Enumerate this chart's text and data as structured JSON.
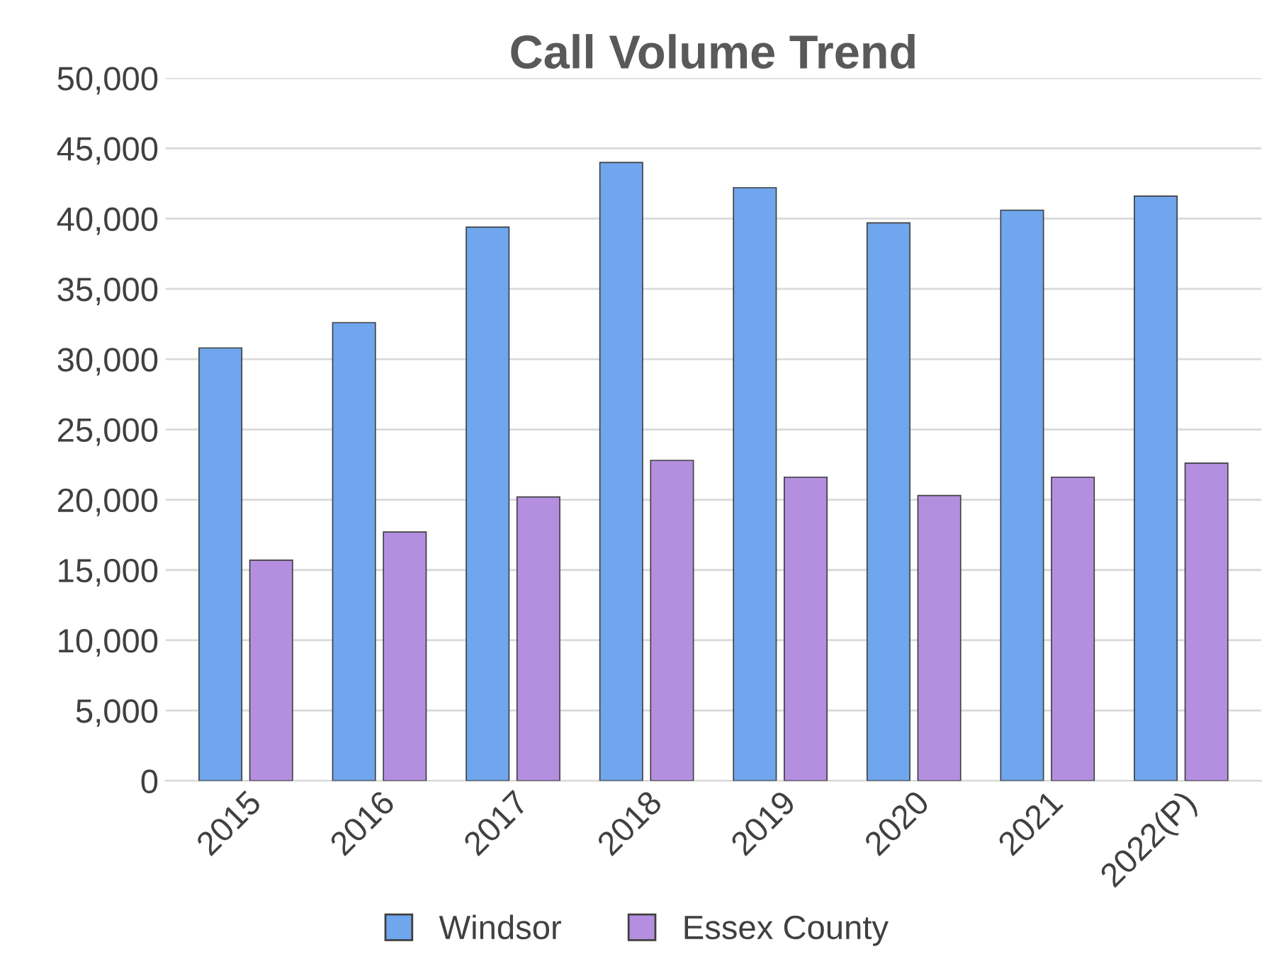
{
  "chart_data": {
    "type": "bar",
    "title": "Call Volume Trend",
    "categories": [
      "2015",
      "2016",
      "2017",
      "2018",
      "2019",
      "2020",
      "2021",
      "2022(P)"
    ],
    "series": [
      {
        "name": "Windsor",
        "color": "#6fa6ee",
        "values": [
          30800,
          32600,
          39400,
          44000,
          42200,
          39700,
          40600,
          41600
        ]
      },
      {
        "name": "Essex County",
        "color": "#b48fe0",
        "values": [
          15700,
          17700,
          20200,
          22800,
          21600,
          20300,
          21600,
          22600
        ]
      }
    ],
    "ylim": [
      0,
      50000
    ],
    "yticks": [
      {
        "value": 0,
        "label": "0"
      },
      {
        "value": 5000,
        "label": "5,000"
      },
      {
        "value": 10000,
        "label": "10,000"
      },
      {
        "value": 15000,
        "label": "15,000"
      },
      {
        "value": 20000,
        "label": "20,000"
      },
      {
        "value": 25000,
        "label": "25,000"
      },
      {
        "value": 30000,
        "label": "30,000"
      },
      {
        "value": 35000,
        "label": "35,000"
      },
      {
        "value": 40000,
        "label": "40,000"
      },
      {
        "value": 45000,
        "label": "45,000"
      },
      {
        "value": 50000,
        "label": "50,000"
      }
    ],
    "grid": "y",
    "legend": "bottom"
  }
}
